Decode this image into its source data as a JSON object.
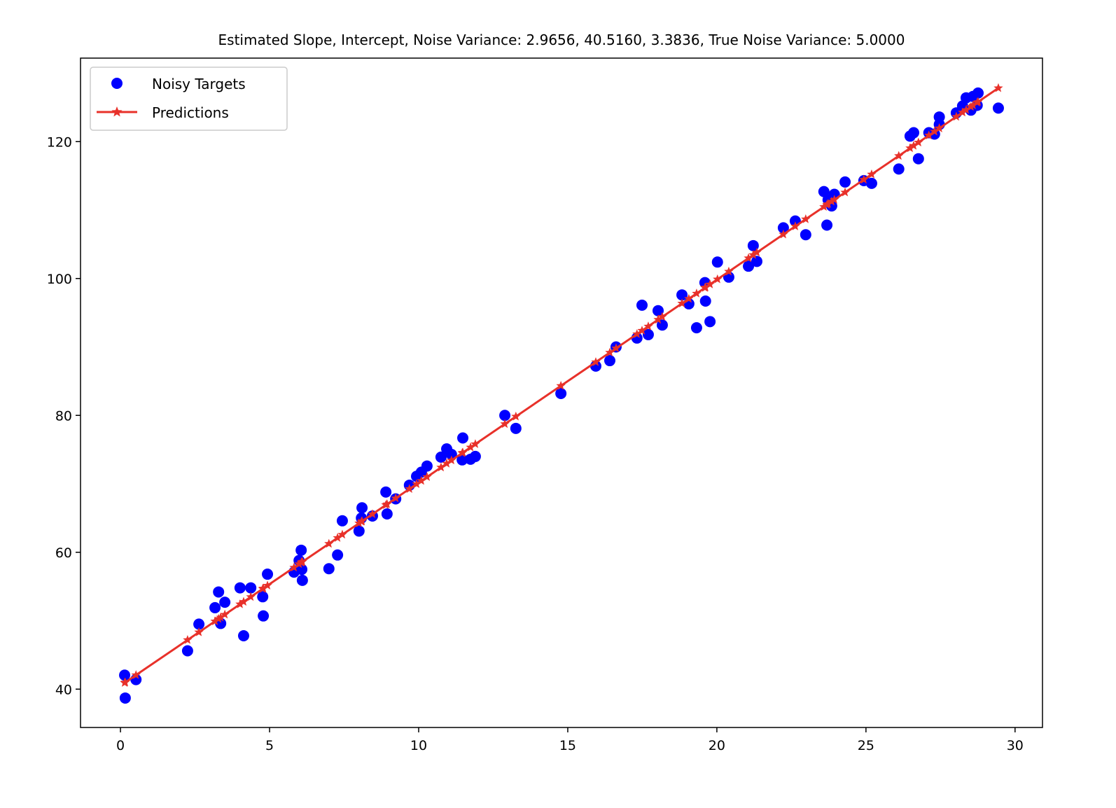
{
  "chart_data": {
    "type": "scatter",
    "title": "Estimated Slope, Intercept, Noise Variance: 2.9656, 40.5160, 3.3836, True Noise Variance: 5.0000",
    "xlabel": "",
    "ylabel": "",
    "xlim": [
      -1.34,
      30.92
    ],
    "ylim": [
      34.4,
      132.2
    ],
    "xticks": [
      0,
      5,
      10,
      15,
      20,
      25,
      30
    ],
    "yticks": [
      40,
      60,
      80,
      100,
      120
    ],
    "grid": false,
    "legend_position": "top-left",
    "fit": {
      "slope": 2.9656,
      "intercept": 40.516
    },
    "series": [
      {
        "name": "Noisy Targets",
        "kind": "scatter",
        "color": "#0000ff",
        "x": [
          0.14,
          0.16,
          0.52,
          2.25,
          2.63,
          3.17,
          3.29,
          3.36,
          3.5,
          4.01,
          4.13,
          4.37,
          4.77,
          4.79,
          4.93,
          5.82,
          5.99,
          6.06,
          6.08,
          6.1,
          6.99,
          7.28,
          7.44,
          8.0,
          8.08,
          8.1,
          8.45,
          8.9,
          8.94,
          9.23,
          9.69,
          9.93,
          10.09,
          10.28,
          10.75,
          10.94,
          11.1,
          11.48,
          11.46,
          11.74,
          11.9,
          12.89,
          13.26,
          14.77,
          15.94,
          16.41,
          16.62,
          17.32,
          17.49,
          17.7,
          18.03,
          18.17,
          18.83,
          19.06,
          19.32,
          19.6,
          19.62,
          19.77,
          20.02,
          20.4,
          21.06,
          21.22,
          21.34,
          22.23,
          22.63,
          22.98,
          23.59,
          23.69,
          23.73,
          23.85,
          23.94,
          24.3,
          24.93,
          25.19,
          26.1,
          26.48,
          26.6,
          26.76,
          27.11,
          27.3,
          27.46,
          27.46,
          28.03,
          28.24,
          28.36,
          28.52,
          28.59,
          28.73,
          28.76,
          29.44
        ],
        "y": [
          42.05,
          38.7,
          41.4,
          45.6,
          49.5,
          51.9,
          54.2,
          49.6,
          52.7,
          54.8,
          47.8,
          54.8,
          53.5,
          50.7,
          56.8,
          57.1,
          58.8,
          60.3,
          57.5,
          55.9,
          57.6,
          59.6,
          64.6,
          63.1,
          65.0,
          66.5,
          65.3,
          68.8,
          65.6,
          67.8,
          69.8,
          71.1,
          71.7,
          72.6,
          73.9,
          75.1,
          74.3,
          76.7,
          73.5,
          73.6,
          74.0,
          80.0,
          78.1,
          83.2,
          87.2,
          88.0,
          90.0,
          91.3,
          96.1,
          91.8,
          95.3,
          93.2,
          97.6,
          96.3,
          92.8,
          99.4,
          96.7,
          93.7,
          102.4,
          100.2,
          101.8,
          104.8,
          102.5,
          107.4,
          108.4,
          106.4,
          112.7,
          107.8,
          111.5,
          110.6,
          112.3,
          114.1,
          114.3,
          113.9,
          116.0,
          120.8,
          121.3,
          117.5,
          121.3,
          121.1,
          123.6,
          122.5,
          124.2,
          125.2,
          126.4,
          124.6,
          126.6,
          125.3,
          127.1,
          124.9
        ]
      },
      {
        "name": "Predictions",
        "kind": "line",
        "marker": "star",
        "color": "#e8312a"
      }
    ]
  }
}
